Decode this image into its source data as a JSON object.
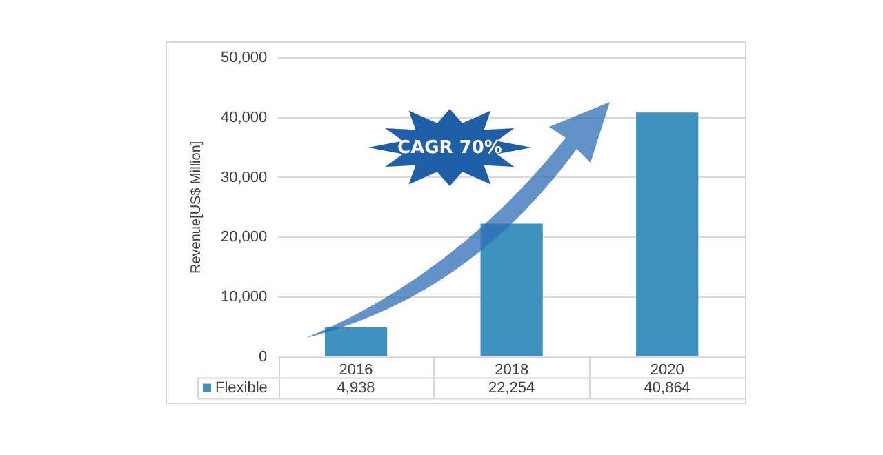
{
  "chart_data": {
    "type": "bar",
    "ylabel": "Revenue[US$ Million]",
    "categories": [
      "2016",
      "2018",
      "2020"
    ],
    "series": [
      {
        "name": "Flexible",
        "color": "#3d93bd",
        "values": [
          4938,
          22254,
          40864
        ],
        "value_labels": [
          "4,938",
          "22,254",
          "40,864"
        ]
      }
    ],
    "ylim": [
      0,
      50000
    ],
    "yticks": [
      {
        "value": 0,
        "label": "0"
      },
      {
        "value": 10000,
        "label": "10,000"
      },
      {
        "value": 20000,
        "label": "20,000"
      },
      {
        "value": 30000,
        "label": "30,000"
      },
      {
        "value": 40000,
        "label": "40,000"
      },
      {
        "value": 50000,
        "label": "50,000"
      }
    ],
    "grid": "y",
    "legend": "bottom",
    "annotations": [
      "CAGR 70%"
    ]
  }
}
